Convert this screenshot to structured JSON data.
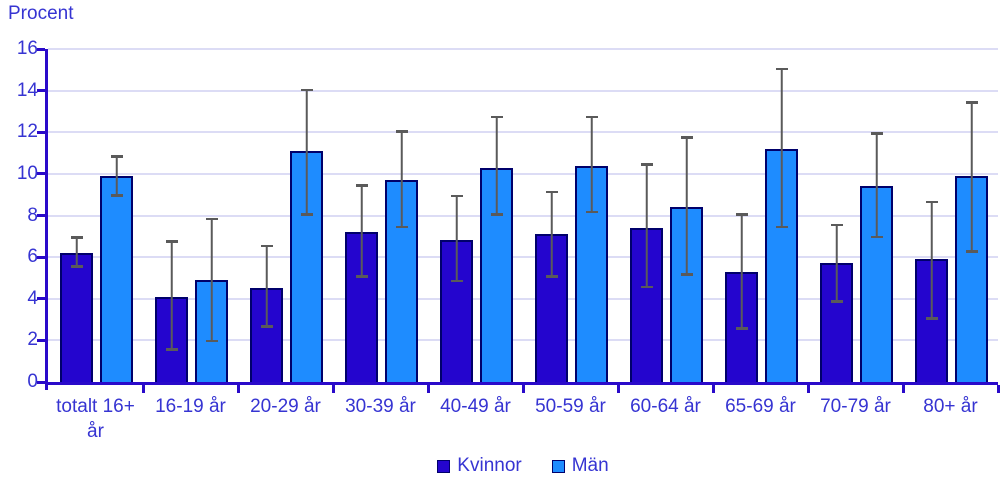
{
  "chart_data": {
    "type": "bar",
    "title": "",
    "ylabel": "Procent",
    "xlabel": "",
    "ylim": [
      0,
      16
    ],
    "yticks": [
      0,
      2,
      4,
      6,
      8,
      10,
      12,
      14,
      16
    ],
    "grid": true,
    "legend_position": "bottom-center",
    "error_bars": true,
    "error_bar_color": "#5A5A5A",
    "categories": [
      "totalt 16+ år",
      "16-19 år",
      "20-29 år",
      "30-39 år",
      "40-49 år",
      "50-59 år",
      "60-64 år",
      "65-69 år",
      "70-79 år",
      "80+ år"
    ],
    "series": [
      {
        "name": "Kvinnor",
        "color": "#2405CE",
        "values": [
          6.2,
          4.1,
          4.5,
          7.2,
          6.8,
          7.1,
          7.4,
          5.3,
          5.7,
          5.9
        ],
        "ci_low": [
          5.5,
          1.5,
          2.6,
          5.0,
          4.8,
          5.0,
          4.5,
          2.5,
          3.8,
          3.0
        ],
        "ci_high": [
          7.0,
          6.8,
          6.6,
          9.5,
          9.0,
          9.2,
          10.5,
          8.1,
          7.6,
          8.7
        ]
      },
      {
        "name": "Män",
        "color": "#1E8CFF",
        "values": [
          9.9,
          4.9,
          11.1,
          9.7,
          10.3,
          10.4,
          8.4,
          11.2,
          9.4,
          9.9
        ],
        "ci_low": [
          8.9,
          1.9,
          8.0,
          7.4,
          8.0,
          8.1,
          5.1,
          7.4,
          6.9,
          6.2
        ],
        "ci_high": [
          10.9,
          7.9,
          14.1,
          12.1,
          12.8,
          12.8,
          11.8,
          15.1,
          12.0,
          13.5
        ]
      }
    ]
  },
  "colors": {
    "axis": "#2A0ACA",
    "label_text": "#3634D2",
    "gridline": "#DCDCF5",
    "bar_border": "#00006B"
  }
}
